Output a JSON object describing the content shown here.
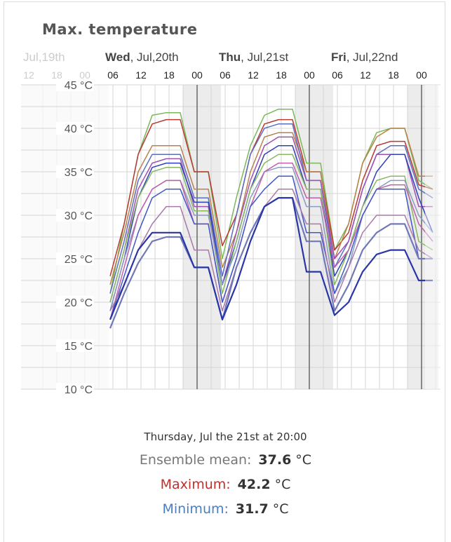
{
  "title": "Max. temperature",
  "chart_data": {
    "type": "line",
    "title": "Max. temperature",
    "y_unit": "°C",
    "ylim": [
      10,
      45
    ],
    "y_ticks": [
      "45 °C",
      "40 °C",
      "35 °C",
      "30 °C",
      "25 °C",
      "20 °C",
      "15 °C",
      "10 °C"
    ],
    "y_tick_values": [
      45,
      40,
      35,
      30,
      25,
      20,
      15,
      10
    ],
    "day_labels": [
      {
        "day": "",
        "date": "Jul,19th",
        "faded": true
      },
      {
        "day": "Wed",
        "date": ", Jul,20th",
        "faded": false
      },
      {
        "day": "Thu",
        "date": ", Jul,21st",
        "faded": false
      },
      {
        "day": "Fri",
        "date": ", Jul,22nd",
        "faded": false
      }
    ],
    "faded_hour_labels": [
      "12",
      "18",
      "00"
    ],
    "hour_labels": [
      "06",
      "12",
      "18",
      "00",
      "06",
      "12",
      "18",
      "00",
      "06",
      "12",
      "18",
      "00"
    ],
    "x": [
      "Wed 06",
      "Wed 09",
      "Wed 12",
      "Wed 15",
      "Wed 18",
      "Wed 21",
      "Thu 00",
      "Thu 03",
      "Thu 06",
      "Thu 09",
      "Thu 12",
      "Thu 15",
      "Thu 18",
      "Thu 21",
      "Fri 00",
      "Fri 03",
      "Fri 06",
      "Fri 09",
      "Fri 12",
      "Fri 15",
      "Fri 18",
      "Fri 21",
      "Sat 00",
      "Sat 03"
    ],
    "grid": true,
    "night_shading": true,
    "series": [
      {
        "color": "#7ab85a",
        "values": [
          21,
          29,
          37,
          41.5,
          41.8,
          41.8,
          35,
          35,
          25,
          32,
          38,
          41.5,
          42.2,
          42.2,
          36,
          36,
          26,
          29,
          36,
          39.5,
          40,
          40,
          34,
          33
        ]
      },
      {
        "color": "#b83a32",
        "values": [
          23,
          29,
          37,
          40.5,
          41,
          41,
          35,
          35,
          26.5,
          30,
          37,
          40.5,
          41,
          41,
          35,
          35,
          26,
          28,
          34,
          38,
          38.5,
          38.5,
          33.5,
          33
        ]
      },
      {
        "color": "#b9824a",
        "values": [
          22,
          28,
          35,
          38,
          38,
          38,
          33,
          33,
          24,
          28,
          35,
          39,
          39.5,
          39.5,
          35,
          35,
          25,
          29,
          36,
          39,
          40,
          40,
          34.5,
          34.5
        ]
      },
      {
        "color": "#5a6fc0",
        "values": [
          21,
          27,
          34,
          37,
          37,
          37,
          32,
          32,
          23,
          30,
          37,
          40,
          40.5,
          40.5,
          34,
          34,
          24,
          27,
          33,
          37,
          38,
          38,
          33,
          32
        ]
      },
      {
        "color": "#a050b0",
        "values": [
          20,
          26,
          33,
          36,
          36.5,
          36.5,
          31,
          31,
          22,
          28,
          34,
          38,
          39,
          39,
          34,
          34,
          25,
          27,
          33,
          37,
          37,
          37,
          31,
          31
        ]
      },
      {
        "color": "#3040b8",
        "values": [
          19,
          25,
          32,
          35.5,
          36,
          36,
          31.5,
          31.5,
          22,
          27,
          33,
          37,
          38,
          38,
          33,
          33,
          23,
          26,
          31,
          35,
          37,
          37,
          32,
          28
        ]
      },
      {
        "color": "#88b860",
        "values": [
          20,
          26,
          32,
          35,
          35.5,
          35.5,
          30.5,
          30.5,
          21,
          27,
          33,
          36,
          37,
          37,
          33,
          33,
          22,
          26,
          31,
          34,
          34.5,
          34.5,
          27,
          26
        ]
      },
      {
        "color": "#8a9ac0",
        "values": [
          19,
          25,
          30,
          33,
          34,
          34,
          30,
          30,
          22,
          26,
          32,
          35,
          35.5,
          35.5,
          31,
          31,
          21,
          24,
          30,
          33,
          34,
          34,
          30,
          28
        ]
      },
      {
        "color": "#c060a8",
        "values": [
          18,
          24,
          30,
          33,
          34,
          34,
          29,
          29,
          20,
          25,
          31,
          35,
          36,
          36,
          32,
          32,
          24,
          26,
          30,
          33,
          33.5,
          33.5,
          29,
          27
        ]
      },
      {
        "color": "#4058c8",
        "values": [
          18,
          23,
          28,
          32,
          33,
          33,
          29,
          29,
          20,
          25,
          31,
          33,
          34.5,
          34.5,
          28,
          28,
          21,
          25,
          30,
          33,
          33,
          33,
          25,
          25
        ]
      },
      {
        "color": "#a87aa8",
        "values": [
          19,
          22,
          26,
          29,
          31,
          31,
          26,
          26,
          19,
          24,
          28,
          31,
          33,
          33,
          29,
          29,
          20,
          24,
          28,
          30,
          30,
          30,
          26,
          25
        ]
      },
      {
        "color": "#7078b8",
        "values": [
          17,
          21,
          24.5,
          27,
          27.5,
          27.5,
          24,
          24,
          18,
          24,
          28,
          31,
          32,
          32,
          27,
          27,
          19,
          22,
          26,
          28,
          29,
          29,
          25,
          25
        ]
      },
      {
        "color": "#2a36a8",
        "values": [
          18,
          22,
          26,
          28,
          28,
          28,
          24,
          24,
          18,
          22,
          27,
          31,
          32,
          32,
          23.5,
          23.5,
          18.5,
          20,
          23.5,
          25.5,
          26,
          26,
          22.5,
          22.5
        ]
      }
    ]
  },
  "readout": {
    "when": "Thursday, Jul the 21st at 20:00",
    "mean_label": "Ensemble mean:",
    "mean_value": "37.6",
    "max_label": "Maximum:",
    "max_value": "42.2",
    "min_label": "Minimum:",
    "min_value": "31.7",
    "unit": "°C",
    "max_color": "#c0302c",
    "min_color": "#4a7fc0"
  }
}
